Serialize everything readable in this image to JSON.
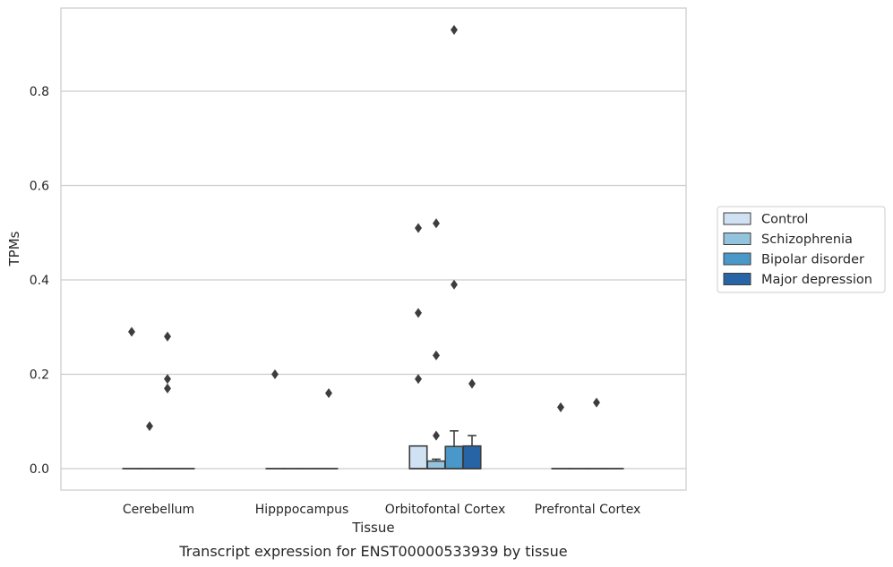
{
  "caption": "Transcript expression for ENST00000533939 by tissue",
  "chart_data": {
    "type": "box",
    "title": "",
    "xlabel": "Tissue",
    "ylabel": "TPMs",
    "ylim": [
      -0.045,
      0.97
    ],
    "yticks": [
      0.0,
      0.2,
      0.4,
      0.6,
      0.8
    ],
    "ytick_labels": [
      "0.0",
      "0.2",
      "0.4",
      "0.6",
      "0.8"
    ],
    "grid": "horizontal",
    "legend_position": "right",
    "categories": [
      "Cerebellum",
      "Hipppocampus",
      "Orbitofontal Cortex",
      "Prefrontal Cortex"
    ],
    "series": [
      {
        "name": "Control",
        "color": "#cfe1f2",
        "boxes": [
          {
            "q1": 0,
            "median": 0,
            "q3": 0,
            "whisker_low": 0,
            "whisker_high": 0,
            "outliers": [
              0.29
            ]
          },
          {
            "q1": 0,
            "median": 0,
            "q3": 0,
            "whisker_low": 0,
            "whisker_high": 0,
            "outliers": [
              0.2
            ]
          },
          {
            "q1": 0,
            "median": 0,
            "q3": 0.048,
            "whisker_low": 0,
            "whisker_high": 0.048,
            "outliers": [
              0.51,
              0.33,
              0.19
            ]
          },
          {
            "q1": 0,
            "median": 0,
            "q3": 0,
            "whisker_low": 0,
            "whisker_high": 0,
            "outliers": [
              0.13
            ]
          }
        ]
      },
      {
        "name": "Schizophrenia",
        "color": "#93c4de",
        "boxes": [
          {
            "q1": 0,
            "median": 0,
            "q3": 0,
            "whisker_low": 0,
            "whisker_high": 0,
            "outliers": [
              0.09
            ]
          },
          {
            "q1": 0,
            "median": 0,
            "q3": 0,
            "whisker_low": 0,
            "whisker_high": 0,
            "outliers": []
          },
          {
            "q1": 0,
            "median": 0,
            "q3": 0.016,
            "whisker_low": 0,
            "whisker_high": 0.02,
            "outliers": [
              0.52,
              0.24,
              0.07
            ]
          },
          {
            "q1": 0,
            "median": 0,
            "q3": 0,
            "whisker_low": 0,
            "whisker_high": 0,
            "outliers": []
          }
        ]
      },
      {
        "name": "Bipolar disorder",
        "color": "#4a98c9",
        "boxes": [
          {
            "q1": 0,
            "median": 0,
            "q3": 0,
            "whisker_low": 0,
            "whisker_high": 0,
            "outliers": [
              0.28,
              0.19,
              0.17
            ]
          },
          {
            "q1": 0,
            "median": 0,
            "q3": 0,
            "whisker_low": 0,
            "whisker_high": 0,
            "outliers": []
          },
          {
            "q1": 0,
            "median": 0,
            "q3": 0.047,
            "whisker_low": 0,
            "whisker_high": 0.08,
            "outliers": [
              0.93,
              0.39
            ]
          },
          {
            "q1": 0,
            "median": 0,
            "q3": 0,
            "whisker_low": 0,
            "whisker_high": 0,
            "outliers": [
              0.14
            ]
          }
        ]
      },
      {
        "name": "Major depression",
        "color": "#2764a6",
        "boxes": [
          {
            "q1": 0,
            "median": 0,
            "q3": 0,
            "whisker_low": 0,
            "whisker_high": 0,
            "outliers": []
          },
          {
            "q1": 0,
            "median": 0,
            "q3": 0,
            "whisker_low": 0,
            "whisker_high": 0,
            "outliers": [
              0.16
            ]
          },
          {
            "q1": 0,
            "median": 0,
            "q3": 0.048,
            "whisker_low": 0,
            "whisker_high": 0.07,
            "outliers": [
              0.18
            ]
          },
          {
            "q1": 0,
            "median": 0,
            "q3": 0,
            "whisker_low": 0,
            "whisker_high": 0,
            "outliers": []
          }
        ]
      }
    ]
  },
  "colors": {
    "grid": "#cccccc",
    "frame": "#cccccc",
    "box_edge": "#3d3d3d",
    "outlier": "#3d3d3d",
    "text": "#262626"
  }
}
